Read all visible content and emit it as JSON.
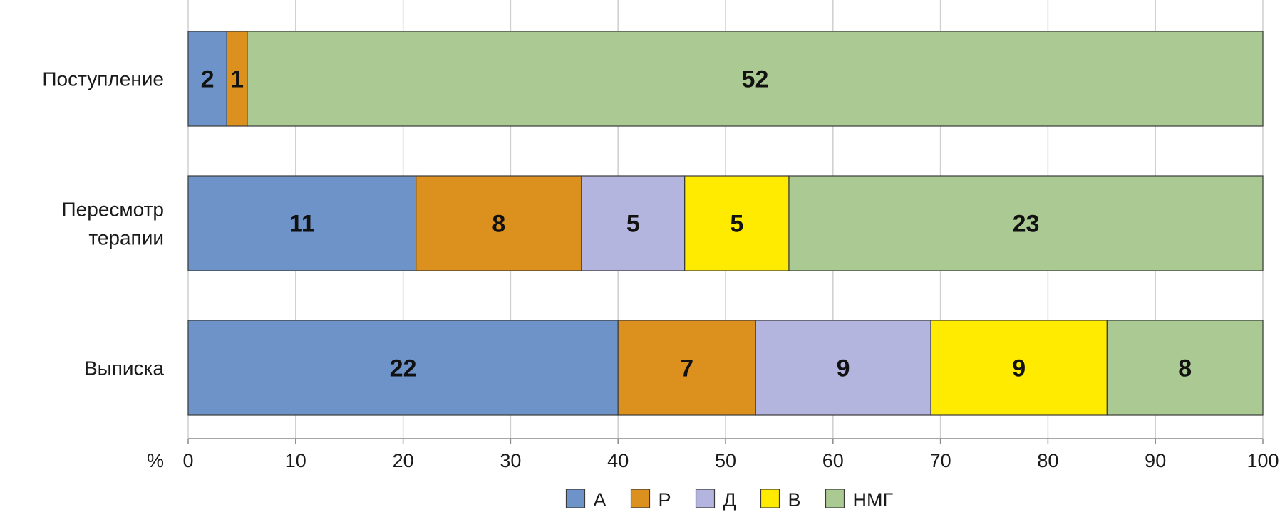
{
  "chart_data": {
    "type": "bar",
    "orientation": "horizontal",
    "stacked": true,
    "categories": [
      [
        "Поступление"
      ],
      [
        "Пересмотр",
        "терапии"
      ],
      [
        "Выписка"
      ]
    ],
    "series": [
      {
        "name": "А",
        "color": "#6d93c9",
        "counts": [
          2,
          11,
          22
        ],
        "percent": [
          3.6,
          21.2,
          40.0
        ]
      },
      {
        "name": "Р",
        "color": "#dc911f",
        "counts": [
          1,
          8,
          7
        ],
        "percent": [
          1.9,
          15.4,
          12.8
        ]
      },
      {
        "name": "Д",
        "color": "#b3b5de",
        "counts": [
          0,
          5,
          9
        ],
        "percent": [
          0,
          9.6,
          16.3
        ]
      },
      {
        "name": "В",
        "color": "#ffeb00",
        "counts": [
          0,
          5,
          9
        ],
        "percent": [
          0,
          9.7,
          16.4
        ]
      },
      {
        "name": "НМГ",
        "color": "#abca93",
        "counts": [
          52,
          23,
          8
        ],
        "percent": [
          94.5,
          44.1,
          14.5
        ]
      }
    ],
    "xlabel": "%",
    "xlim": [
      0,
      100
    ],
    "xticks": [
      "0",
      "10",
      "20",
      "30",
      "40",
      "50",
      "60",
      "70",
      "80",
      "90",
      "100"
    ],
    "grid": "vertical",
    "legend_position": "bottom-center"
  }
}
